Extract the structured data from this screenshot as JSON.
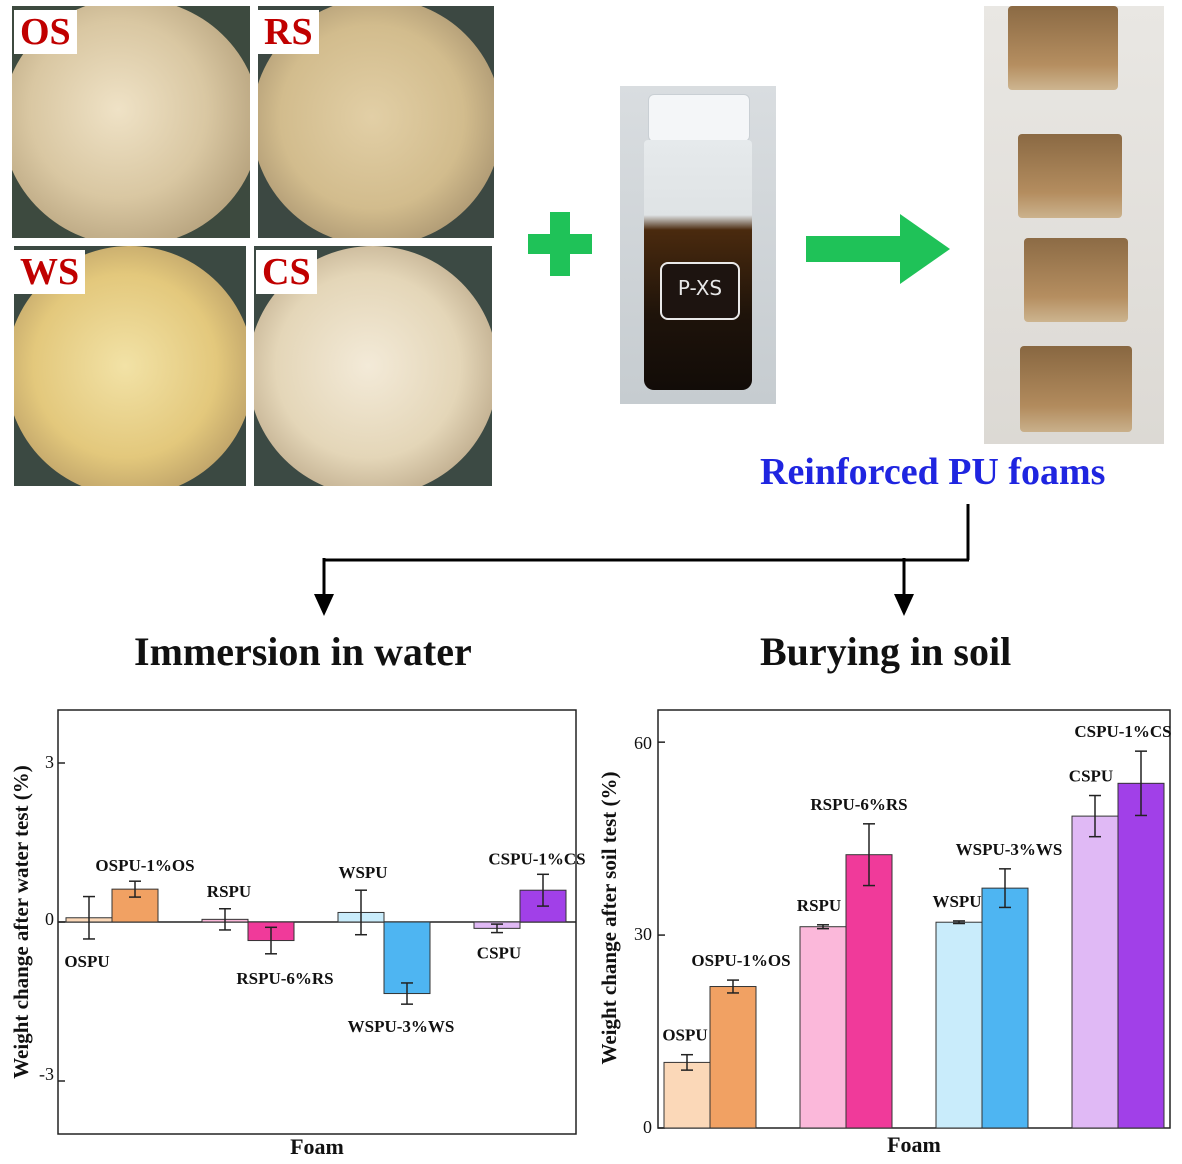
{
  "photos": {
    "labels": [
      "OS",
      "RS",
      "WS",
      "CS"
    ],
    "vial_label": "P-XS"
  },
  "process": {
    "product_label": "Reinforced PU foams",
    "branch_left": "Immersion in water",
    "branch_right": "Burying in soil"
  },
  "chart_data": [
    {
      "type": "bar",
      "categories": [
        "OSPU",
        "OSPU-1%OS",
        "RSPU",
        "RSPU-6%RS",
        "WSPU",
        "WSPU-3%WS",
        "CSPU",
        "CSPU-1%CS"
      ],
      "values": [
        0.08,
        0.62,
        0.05,
        -0.35,
        0.18,
        -1.35,
        -0.12,
        0.6
      ],
      "errors": [
        0.4,
        0.15,
        0.2,
        0.25,
        0.42,
        0.2,
        0.08,
        0.3
      ],
      "colors": [
        "#fbd8b8",
        "#f1a163",
        "#fbb8da",
        "#f03a9a",
        "#c9ecfb",
        "#4eb5f2",
        "#e0b9f5",
        "#a140e8"
      ],
      "xlabel": "Foam",
      "ylabel": "Weight change after water test (%)",
      "yticks": [
        "3",
        "0",
        "-3"
      ],
      "ylim": [
        -4.0,
        4.0
      ]
    },
    {
      "type": "bar",
      "categories": [
        "OSPU",
        "OSPU-1%OS",
        "RSPU",
        "RSPU-6%RS",
        "WSPU",
        "WSPU-3%WS",
        "CSPU",
        "CSPU-1%CS"
      ],
      "values": [
        10.2,
        22.0,
        31.3,
        42.5,
        32.0,
        37.3,
        48.5,
        53.6
      ],
      "errors": [
        1.2,
        1.0,
        0.3,
        4.8,
        0.2,
        3.0,
        3.2,
        5.0
      ],
      "colors": [
        "#fbd8b8",
        "#f1a163",
        "#fbb8da",
        "#f03a9a",
        "#c9ecfb",
        "#4eb5f2",
        "#e0b9f5",
        "#a140e8"
      ],
      "xlabel": "Foam",
      "ylabel": "Weight change after soil test (%)",
      "yticks": [
        "0",
        "30",
        "60"
      ],
      "ylim": [
        0,
        65
      ]
    }
  ]
}
